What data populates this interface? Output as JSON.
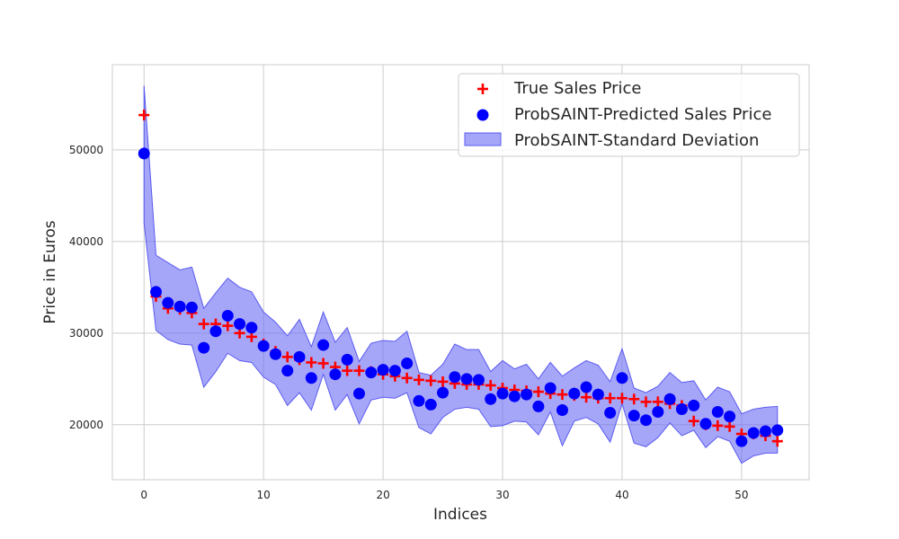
{
  "chart_data": {
    "type": "scatter",
    "title": "",
    "xlabel": "Indices",
    "ylabel": "Price in Euros",
    "xlim": [
      -2.65,
      55.65
    ],
    "ylim": [
      14000,
      59300
    ],
    "xticks": [
      0,
      10,
      20,
      30,
      40,
      50
    ],
    "yticks": [
      20000,
      30000,
      40000,
      50000
    ],
    "grid": true,
    "legend_position": "top-right",
    "colors": {
      "true": "#ff0000",
      "pred": "#0000ff",
      "band_fill": "#6b6bf5",
      "band_edge": "#5a5af0",
      "grid": "#cccccc",
      "frame": "#cccccc"
    },
    "series": [
      {
        "name": "True Sales Price",
        "marker": "plus",
        "values": [
          53800,
          34000,
          32700,
          32600,
          32200,
          31000,
          31000,
          30800,
          30000,
          29600,
          28800,
          28000,
          27400,
          27100,
          26800,
          26700,
          26300,
          25900,
          25900,
          25800,
          25500,
          25300,
          25100,
          24900,
          24800,
          24700,
          24500,
          24400,
          24400,
          24300,
          24000,
          23800,
          23700,
          23600,
          23400,
          23300,
          23200,
          23000,
          22900,
          22900,
          22900,
          22800,
          22500,
          22500,
          22300,
          22100,
          20400,
          20000,
          19900,
          19800,
          19000,
          19000,
          18800,
          18200
        ]
      },
      {
        "name": "ProbSAINT-Predicted Sales Price",
        "marker": "circle",
        "values": [
          49600,
          34500,
          33300,
          32900,
          32800,
          28400,
          30200,
          31900,
          31000,
          30600,
          28600,
          27700,
          25900,
          27400,
          25100,
          28700,
          25500,
          27100,
          23400,
          25700,
          26000,
          25900,
          26700,
          22600,
          22200,
          23500,
          25200,
          25000,
          24900,
          22800,
          23400,
          23100,
          23300,
          22000,
          24000,
          21600,
          23400,
          24100,
          23300,
          21300,
          25100,
          21000,
          20500,
          21400,
          22800,
          21700,
          22100,
          20100,
          21400,
          20900,
          18200,
          19100,
          19300,
          19400
        ]
      },
      {
        "name": "ProbSAINT-Standard Deviation",
        "type": "band",
        "lower": [
          42000,
          30300,
          29300,
          28800,
          28700,
          24100,
          25800,
          27800,
          27000,
          26800,
          25200,
          24400,
          22100,
          23500,
          21600,
          25500,
          21600,
          23300,
          20100,
          22700,
          23000,
          22900,
          23500,
          19700,
          19000,
          20800,
          21700,
          21900,
          21700,
          19800,
          19900,
          20400,
          20300,
          18900,
          21400,
          17700,
          20400,
          20800,
          20100,
          18100,
          22300,
          18000,
          17600,
          18600,
          20200,
          18800,
          19400,
          17500,
          18700,
          18200,
          15800,
          16600,
          16900,
          16900
        ],
        "upper": [
          57000,
          38500,
          37700,
          36900,
          37200,
          32700,
          34400,
          36000,
          35000,
          34500,
          32300,
          31200,
          29700,
          31500,
          28500,
          32300,
          29000,
          30600,
          26900,
          28900,
          29200,
          29100,
          30200,
          25700,
          25400,
          26600,
          28800,
          28200,
          28200,
          25800,
          27000,
          26100,
          26600,
          25000,
          26800,
          25300,
          26200,
          27000,
          26500,
          24700,
          28300,
          24000,
          23500,
          24200,
          25700,
          24600,
          24800,
          22700,
          24100,
          23600,
          21200,
          21700,
          21900,
          22000
        ]
      }
    ]
  }
}
